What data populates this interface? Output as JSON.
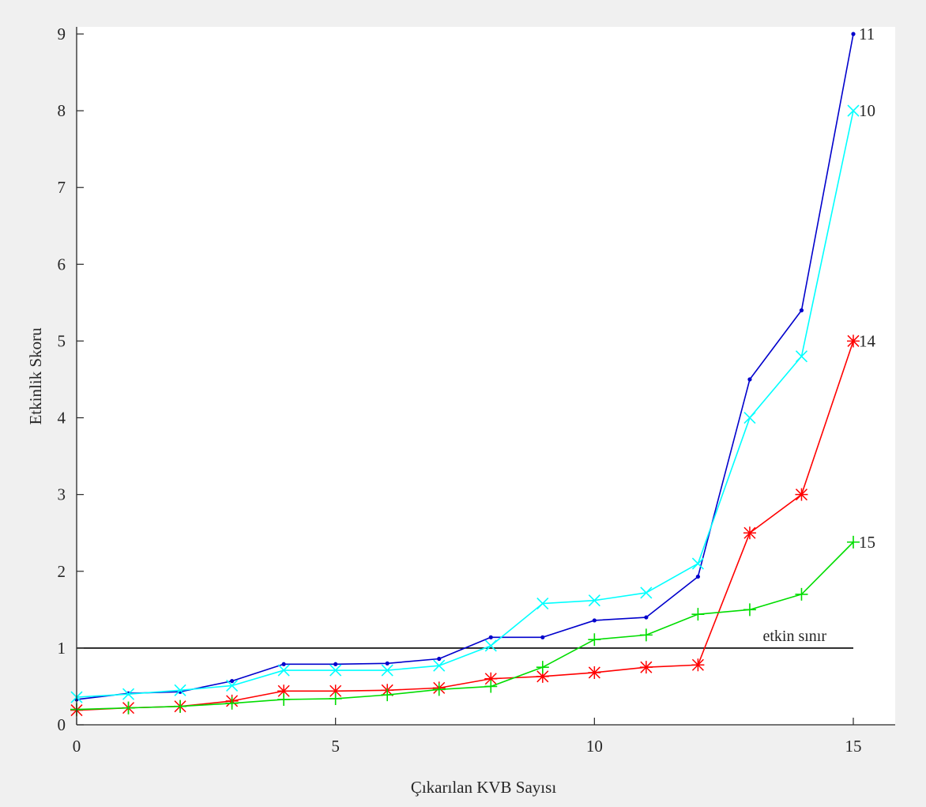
{
  "chart_data": {
    "type": "line",
    "title": "",
    "xlabel": "Çıkarılan KVB Sayısı",
    "ylabel": "Etkinlik Skoru",
    "xlim": [
      0,
      15.6
    ],
    "ylim": [
      0,
      9.1
    ],
    "xticks": [
      0,
      5,
      10,
      15
    ],
    "xtick_labels": [
      "0",
      "5",
      "10",
      "15"
    ],
    "yticks": [
      0,
      1,
      2,
      3,
      4,
      5,
      6,
      7,
      8,
      9
    ],
    "ytick_labels": [
      "0",
      "1",
      "2",
      "3",
      "4",
      "5",
      "6",
      "7",
      "8",
      "9"
    ],
    "grid": false,
    "legend": "none",
    "threshold": {
      "y": 1,
      "x_range": [
        0,
        15
      ],
      "label": "etkin sınır",
      "color": "#000000"
    },
    "x": [
      0,
      1,
      2,
      3,
      4,
      5,
      6,
      7,
      8,
      9,
      10,
      11,
      12,
      13,
      14,
      15
    ],
    "series": [
      {
        "end_label": "11",
        "color": "#0000cc",
        "marker": "dot",
        "values": [
          0.33,
          0.41,
          0.43,
          0.57,
          0.79,
          0.79,
          0.8,
          0.86,
          1.14,
          1.14,
          1.36,
          1.4,
          1.93,
          4.5,
          5.4,
          9.0
        ]
      },
      {
        "end_label": "10",
        "color": "#00ffff",
        "marker": "x",
        "values": [
          0.36,
          0.4,
          0.45,
          0.51,
          0.71,
          0.71,
          0.71,
          0.77,
          1.03,
          1.58,
          1.62,
          1.72,
          2.1,
          4.0,
          4.8,
          8.0
        ]
      },
      {
        "end_label": "14",
        "color": "#ff0000",
        "marker": "asterisk",
        "values": [
          0.19,
          0.22,
          0.24,
          0.31,
          0.44,
          0.44,
          0.45,
          0.48,
          0.6,
          0.63,
          0.68,
          0.75,
          0.78,
          2.5,
          3.0,
          5.0
        ]
      },
      {
        "end_label": "15",
        "color": "#00dd00",
        "marker": "plus",
        "values": [
          0.2,
          0.22,
          0.24,
          0.28,
          0.33,
          0.34,
          0.39,
          0.46,
          0.5,
          0.75,
          1.11,
          1.17,
          1.44,
          1.5,
          1.7,
          2.38
        ]
      }
    ]
  }
}
